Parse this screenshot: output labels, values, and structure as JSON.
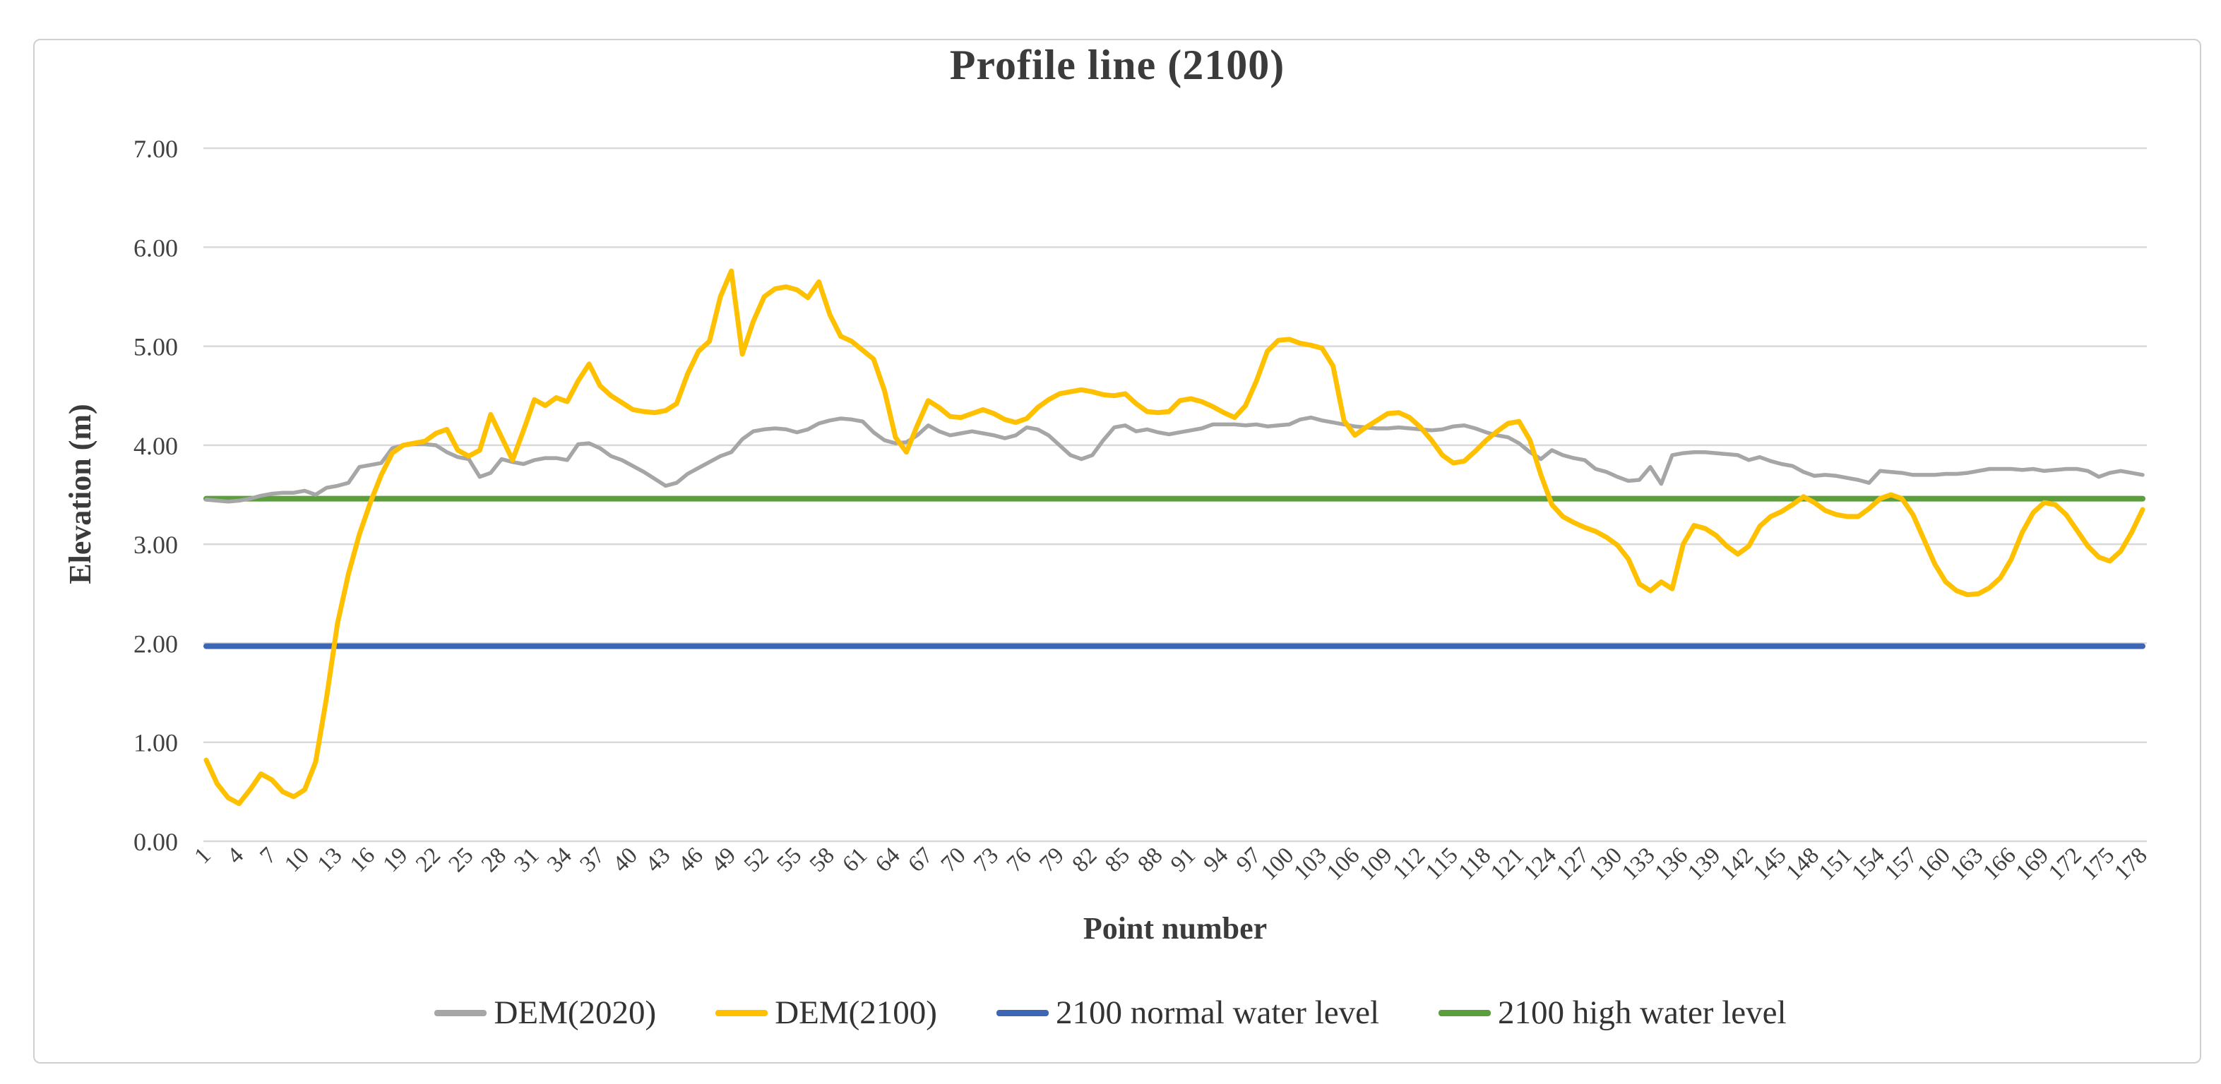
{
  "chart_data": {
    "type": "line",
    "title": "Profile line (2100)",
    "xlabel": "Point number",
    "ylabel": "Elevation (m)",
    "ylim": [
      0,
      7
    ],
    "grid": "horizontal-gridlines-only",
    "legend_position": "bottom",
    "ytick_labels": [
      "0.00",
      "1.00",
      "2.00",
      "3.00",
      "4.00",
      "5.00",
      "6.00",
      "7.00"
    ],
    "xtick_labels": [
      "1",
      "4",
      "7",
      "10",
      "13",
      "16",
      "19",
      "22",
      "25",
      "28",
      "31",
      "34",
      "37",
      "40",
      "43",
      "46",
      "49",
      "52",
      "55",
      "58",
      "61",
      "64",
      "67",
      "70",
      "73",
      "76",
      "79",
      "82",
      "85",
      "88",
      "91",
      "94",
      "97",
      "100",
      "103",
      "106",
      "109",
      "112",
      "115",
      "118",
      "121",
      "124",
      "127",
      "130",
      "133",
      "136",
      "139",
      "142",
      "145",
      "148",
      "151",
      "154",
      "157",
      "160",
      "163",
      "166",
      "169",
      "172",
      "175",
      "178"
    ],
    "x_range": [
      1,
      178
    ],
    "series": [
      {
        "name": "DEM(2020)",
        "color": "#A6A6A6",
        "width": 5.5,
        "values": [
          3.45,
          3.44,
          3.43,
          3.44,
          3.46,
          3.49,
          3.51,
          3.52,
          3.52,
          3.54,
          3.5,
          3.57,
          3.59,
          3.62,
          3.78,
          3.8,
          3.82,
          3.97,
          4.0,
          4.01,
          4.01,
          4.0,
          3.93,
          3.88,
          3.86,
          3.68,
          3.72,
          3.86,
          3.83,
          3.81,
          3.85,
          3.87,
          3.87,
          3.85,
          4.01,
          4.02,
          3.97,
          3.89,
          3.85,
          3.79,
          3.73,
          3.66,
          3.59,
          3.62,
          3.71,
          3.77,
          3.83,
          3.89,
          3.93,
          4.06,
          4.14,
          4.16,
          4.17,
          4.16,
          4.13,
          4.16,
          4.22,
          4.25,
          4.27,
          4.26,
          4.24,
          4.13,
          4.05,
          4.02,
          4.03,
          4.1,
          4.2,
          4.14,
          4.1,
          4.12,
          4.14,
          4.12,
          4.1,
          4.07,
          4.1,
          4.18,
          4.16,
          4.1,
          4.0,
          3.9,
          3.86,
          3.9,
          4.05,
          4.18,
          4.2,
          4.14,
          4.16,
          4.13,
          4.11,
          4.13,
          4.15,
          4.17,
          4.21,
          4.21,
          4.21,
          4.2,
          4.21,
          4.19,
          4.2,
          4.21,
          4.26,
          4.28,
          4.25,
          4.23,
          4.21,
          4.19,
          4.18,
          4.17,
          4.17,
          4.18,
          4.17,
          4.16,
          4.15,
          4.16,
          4.19,
          4.2,
          4.17,
          4.13,
          4.1,
          4.08,
          4.02,
          3.93,
          3.86,
          3.95,
          3.9,
          3.87,
          3.85,
          3.76,
          3.73,
          3.68,
          3.64,
          3.65,
          3.78,
          3.61,
          3.9,
          3.92,
          3.93,
          3.93,
          3.92,
          3.91,
          3.9,
          3.85,
          3.88,
          3.84,
          3.81,
          3.79,
          3.73,
          3.69,
          3.7,
          3.69,
          3.67,
          3.65,
          3.62,
          3.74,
          3.73,
          3.72,
          3.7,
          3.7,
          3.7,
          3.71,
          3.71,
          3.72,
          3.74,
          3.76,
          3.76,
          3.76,
          3.75,
          3.76,
          3.74,
          3.75,
          3.76,
          3.76,
          3.74,
          3.68,
          3.72,
          3.74,
          3.72,
          3.7
        ]
      },
      {
        "name": "DEM(2100)",
        "color": "#FFC000",
        "width": 7,
        "values": [
          0.82,
          0.58,
          0.44,
          0.38,
          0.52,
          0.68,
          0.62,
          0.5,
          0.45,
          0.52,
          0.8,
          1.45,
          2.2,
          2.7,
          3.1,
          3.42,
          3.7,
          3.92,
          4.0,
          4.02,
          4.04,
          4.12,
          4.16,
          3.95,
          3.89,
          3.95,
          4.31,
          4.08,
          3.85,
          4.15,
          4.46,
          4.4,
          4.48,
          4.44,
          4.65,
          4.82,
          4.6,
          4.5,
          4.43,
          4.36,
          4.34,
          4.33,
          4.35,
          4.42,
          4.72,
          4.95,
          5.05,
          5.5,
          5.76,
          4.92,
          5.25,
          5.5,
          5.58,
          5.6,
          5.57,
          5.49,
          5.65,
          5.32,
          5.1,
          5.05,
          4.96,
          4.87,
          4.55,
          4.08,
          3.93,
          4.2,
          4.45,
          4.38,
          4.29,
          4.28,
          4.32,
          4.36,
          4.32,
          4.26,
          4.23,
          4.27,
          4.38,
          4.46,
          4.52,
          4.54,
          4.56,
          4.54,
          4.51,
          4.5,
          4.52,
          4.42,
          4.34,
          4.33,
          4.34,
          4.45,
          4.47,
          4.44,
          4.39,
          4.33,
          4.28,
          4.4,
          4.65,
          4.95,
          5.06,
          5.07,
          5.03,
          5.01,
          4.98,
          4.8,
          4.25,
          4.1,
          4.18,
          4.25,
          4.32,
          4.33,
          4.28,
          4.18,
          4.05,
          3.9,
          3.82,
          3.84,
          3.94,
          4.05,
          4.14,
          4.22,
          4.24,
          4.05,
          3.7,
          3.4,
          3.28,
          3.22,
          3.17,
          3.13,
          3.07,
          2.99,
          2.85,
          2.6,
          2.53,
          2.62,
          2.55,
          3.0,
          3.19,
          3.16,
          3.09,
          2.98,
          2.9,
          2.98,
          3.18,
          3.28,
          3.33,
          3.4,
          3.48,
          3.42,
          3.34,
          3.3,
          3.28,
          3.28,
          3.36,
          3.46,
          3.5,
          3.46,
          3.3,
          3.05,
          2.8,
          2.62,
          2.53,
          2.49,
          2.5,
          2.56,
          2.66,
          2.85,
          3.12,
          3.32,
          3.42,
          3.4,
          3.3,
          3.14,
          2.98,
          2.87,
          2.83,
          2.93,
          3.12,
          3.35
        ]
      },
      {
        "name": "2100 normal water level",
        "color": "#3D66B5",
        "width": 8,
        "constant": 1.97
      },
      {
        "name": "2100 high water level",
        "color": "#5B9E3C",
        "width": 8,
        "constant": 3.46
      }
    ],
    "style": {
      "gridline_color": "#D9D9D9",
      "tick_label_color": "#404040",
      "title_color": "#3B3B3B"
    }
  }
}
